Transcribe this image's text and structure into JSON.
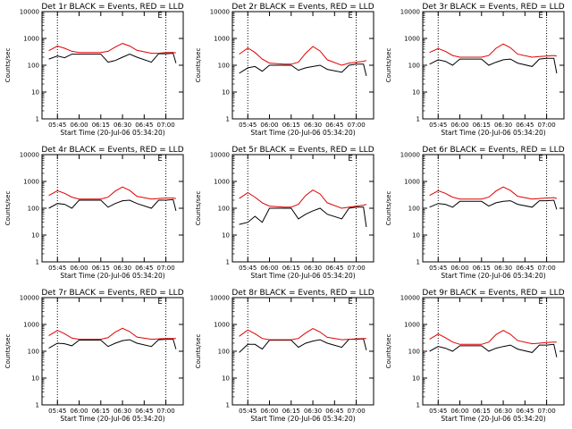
{
  "chart_data": [
    {
      "type": "line",
      "title": "Det 1r BLACK = Events, RED = LLD",
      "xlabel": "Start Time (20-Jul-06 05:34:20)",
      "ylabel": "Counts/sec",
      "marker_label": "E",
      "yscale": "log",
      "ylim": [
        1,
        10000
      ],
      "x_tick_labels": [
        "05:45",
        "06:00",
        "06:15",
        "06:30",
        "06:45",
        "07:00"
      ],
      "y_tick_labels": [
        "1",
        "10",
        "100",
        "1000",
        "10000"
      ],
      "colors": {
        "events": "#000000",
        "lld": "#e00000"
      },
      "series": [
        {
          "name": "BLACK = Events",
          "x": [
            "05:39",
            "05:45",
            "05:50",
            "05:55",
            "06:00",
            "06:10",
            "06:15",
            "06:20",
            "06:25",
            "06:30",
            "06:35",
            "06:40",
            "06:50",
            "06:55",
            "07:00",
            "07:05",
            "07:07"
          ],
          "y": [
            170,
            220,
            190,
            260,
            260,
            260,
            260,
            130,
            150,
            200,
            260,
            200,
            130,
            270,
            270,
            280,
            120
          ]
        },
        {
          "name": "RED = LLD",
          "x": [
            "05:39",
            "05:45",
            "05:50",
            "05:55",
            "06:00",
            "06:10",
            "06:15",
            "06:20",
            "06:25",
            "06:30",
            "06:35",
            "06:40",
            "06:50",
            "06:55",
            "07:00",
            "07:05",
            "07:07"
          ],
          "y": [
            350,
            520,
            430,
            330,
            300,
            300,
            300,
            330,
            480,
            650,
            520,
            360,
            280,
            280,
            300,
            300,
            290
          ]
        }
      ]
    },
    {
      "type": "line",
      "title": "Det 2r BLACK = Events, RED = LLD",
      "xlabel": "Start Time (20-Jul-06 05:34:20)",
      "ylabel": "Counts/sec",
      "marker_label": "E",
      "yscale": "log",
      "ylim": [
        1,
        10000
      ],
      "x_tick_labels": [
        "05:45",
        "06:00",
        "06:15",
        "06:30",
        "06:45",
        "07:00"
      ],
      "y_tick_labels": [
        "1",
        "10",
        "100",
        "1000",
        "10000"
      ],
      "colors": {
        "events": "#000000",
        "lld": "#e00000"
      },
      "series": [
        {
          "name": "BLACK = Events",
          "x": [
            "05:39",
            "05:45",
            "05:50",
            "05:55",
            "06:00",
            "06:10",
            "06:15",
            "06:20",
            "06:25",
            "06:30",
            "06:35",
            "06:40",
            "06:50",
            "06:55",
            "07:00",
            "07:05",
            "07:07"
          ],
          "y": [
            50,
            80,
            90,
            60,
            100,
            100,
            100,
            65,
            80,
            90,
            100,
            70,
            55,
            100,
            110,
            110,
            40
          ]
        },
        {
          "name": "RED = LLD",
          "x": [
            "05:39",
            "05:45",
            "05:50",
            "05:55",
            "06:00",
            "06:10",
            "06:15",
            "06:20",
            "06:25",
            "06:30",
            "06:35",
            "06:40",
            "06:50",
            "06:55",
            "07:00",
            "07:05",
            "07:07"
          ],
          "y": [
            260,
            440,
            300,
            170,
            120,
            110,
            110,
            130,
            280,
            500,
            340,
            160,
            100,
            120,
            130,
            140,
            150
          ]
        }
      ]
    },
    {
      "type": "line",
      "title": "Det 3r BLACK = Events, RED = LLD",
      "xlabel": "Start Time (20-Jul-06 05:34:20)",
      "ylabel": "Counts/sec",
      "marker_label": "E",
      "yscale": "log",
      "ylim": [
        1,
        10000
      ],
      "x_tick_labels": [
        "05:45",
        "06:00",
        "06:15",
        "06:30",
        "06:45",
        "07:00"
      ],
      "y_tick_labels": [
        "1",
        "10",
        "100",
        "1000",
        "10000"
      ],
      "colors": {
        "events": "#000000",
        "lld": "#e00000"
      },
      "series": [
        {
          "name": "BLACK = Events",
          "x": [
            "05:39",
            "05:45",
            "05:50",
            "05:55",
            "06:00",
            "06:10",
            "06:15",
            "06:20",
            "06:25",
            "06:30",
            "06:35",
            "06:40",
            "06:50",
            "06:55",
            "07:00",
            "07:05",
            "07:07"
          ],
          "y": [
            110,
            160,
            140,
            100,
            170,
            170,
            170,
            100,
            130,
            160,
            170,
            120,
            90,
            170,
            180,
            180,
            50
          ]
        },
        {
          "name": "RED = LLD",
          "x": [
            "05:39",
            "05:45",
            "05:50",
            "05:55",
            "06:00",
            "06:10",
            "06:15",
            "06:20",
            "06:25",
            "06:30",
            "06:35",
            "06:40",
            "06:50",
            "06:55",
            "07:00",
            "07:05",
            "07:07"
          ],
          "y": [
            300,
            420,
            330,
            230,
            200,
            200,
            200,
            230,
            430,
            620,
            450,
            260,
            200,
            210,
            220,
            230,
            220
          ]
        }
      ]
    },
    {
      "type": "line",
      "title": "Det 4r BLACK = Events, RED = LLD",
      "xlabel": "Start Time (20-Jul-06 05:34:20)",
      "ylabel": "Counts/sec",
      "marker_label": "E",
      "yscale": "log",
      "ylim": [
        1,
        10000
      ],
      "x_tick_labels": [
        "05:45",
        "06:00",
        "06:15",
        "06:30",
        "06:45",
        "07:00"
      ],
      "y_tick_labels": [
        "1",
        "10",
        "100",
        "1000",
        "10000"
      ],
      "colors": {
        "events": "#000000",
        "lld": "#e00000"
      },
      "series": [
        {
          "name": "BLACK = Events",
          "x": [
            "05:39",
            "05:45",
            "05:50",
            "05:55",
            "06:00",
            "06:10",
            "06:15",
            "06:20",
            "06:25",
            "06:30",
            "06:35",
            "06:40",
            "06:50",
            "06:55",
            "07:00",
            "07:05",
            "07:07"
          ],
          "y": [
            100,
            150,
            140,
            100,
            200,
            200,
            200,
            110,
            150,
            190,
            200,
            150,
            100,
            200,
            200,
            210,
            80
          ]
        },
        {
          "name": "RED = LLD",
          "x": [
            "05:39",
            "05:45",
            "05:50",
            "05:55",
            "06:00",
            "06:10",
            "06:15",
            "06:20",
            "06:25",
            "06:30",
            "06:35",
            "06:40",
            "06:50",
            "06:55",
            "07:00",
            "07:05",
            "07:07"
          ],
          "y": [
            300,
            450,
            360,
            260,
            220,
            220,
            220,
            260,
            440,
            620,
            460,
            280,
            220,
            230,
            240,
            240,
            230
          ]
        }
      ]
    },
    {
      "type": "line",
      "title": "Det 5r BLACK = Events, RED = LLD",
      "xlabel": "Start Time (20-Jul-06 05:34:20)",
      "ylabel": "Counts/sec",
      "marker_label": "E",
      "yscale": "log",
      "ylim": [
        1,
        10000
      ],
      "x_tick_labels": [
        "05:45",
        "06:00",
        "06:15",
        "06:30",
        "06:45",
        "07:00"
      ],
      "y_tick_labels": [
        "1",
        "10",
        "100",
        "1000",
        "10000"
      ],
      "colors": {
        "events": "#000000",
        "lld": "#e00000"
      },
      "series": [
        {
          "name": "BLACK = Events",
          "x": [
            "05:39",
            "05:45",
            "05:50",
            "05:55",
            "06:00",
            "06:10",
            "06:15",
            "06:20",
            "06:25",
            "06:30",
            "06:35",
            "06:40",
            "06:50",
            "06:55",
            "07:00",
            "07:05",
            "07:07"
          ],
          "y": [
            25,
            30,
            50,
            30,
            100,
            100,
            100,
            40,
            60,
            80,
            100,
            60,
            40,
            100,
            110,
            110,
            20
          ]
        },
        {
          "name": "RED = LLD",
          "x": [
            "05:39",
            "05:45",
            "05:50",
            "05:55",
            "06:00",
            "06:10",
            "06:15",
            "06:20",
            "06:25",
            "06:30",
            "06:35",
            "06:40",
            "06:50",
            "06:55",
            "07:00",
            "07:05",
            "07:07"
          ],
          "y": [
            230,
            380,
            260,
            160,
            120,
            110,
            110,
            140,
            300,
            480,
            340,
            160,
            100,
            110,
            120,
            130,
            140
          ]
        }
      ]
    },
    {
      "type": "line",
      "title": "Det 6r BLACK = Events, RED = LLD",
      "xlabel": "Start Time (20-Jul-06 05:34:20)",
      "ylabel": "Counts/sec",
      "marker_label": "E",
      "yscale": "log",
      "ylim": [
        1,
        10000
      ],
      "x_tick_labels": [
        "05:45",
        "06:00",
        "06:15",
        "06:30",
        "06:45",
        "07:00"
      ],
      "y_tick_labels": [
        "1",
        "10",
        "100",
        "1000",
        "10000"
      ],
      "colors": {
        "events": "#000000",
        "lld": "#e00000"
      },
      "series": [
        {
          "name": "BLACK = Events",
          "x": [
            "05:39",
            "05:45",
            "05:50",
            "05:55",
            "06:00",
            "06:10",
            "06:15",
            "06:20",
            "06:25",
            "06:30",
            "06:35",
            "06:40",
            "06:50",
            "06:55",
            "07:00",
            "07:05",
            "07:07"
          ],
          "y": [
            110,
            150,
            140,
            110,
            180,
            180,
            180,
            120,
            160,
            180,
            190,
            140,
            110,
            190,
            190,
            200,
            90
          ]
        },
        {
          "name": "RED = LLD",
          "x": [
            "05:39",
            "05:45",
            "05:50",
            "05:55",
            "06:00",
            "06:10",
            "06:15",
            "06:20",
            "06:25",
            "06:30",
            "06:35",
            "06:40",
            "06:50",
            "06:55",
            "07:00",
            "07:05",
            "07:07"
          ],
          "y": [
            300,
            450,
            360,
            260,
            220,
            220,
            220,
            260,
            440,
            620,
            460,
            280,
            220,
            230,
            240,
            250,
            230
          ]
        }
      ]
    },
    {
      "type": "line",
      "title": "Det 7r BLACK = Events, RED = LLD",
      "xlabel": "Start Time (20-Jul-06 05:34:20)",
      "ylabel": "Counts/sec",
      "marker_label": "E",
      "yscale": "log",
      "ylim": [
        1,
        10000
      ],
      "x_tick_labels": [
        "05:45",
        "06:00",
        "06:15",
        "06:30",
        "06:45",
        "07:00"
      ],
      "y_tick_labels": [
        "1",
        "10",
        "100",
        "1000",
        "10000"
      ],
      "colors": {
        "events": "#000000",
        "lld": "#e00000"
      },
      "series": [
        {
          "name": "BLACK = Events",
          "x": [
            "05:39",
            "05:45",
            "05:50",
            "05:55",
            "06:00",
            "06:10",
            "06:15",
            "06:20",
            "06:25",
            "06:30",
            "06:35",
            "06:40",
            "06:50",
            "06:55",
            "07:00",
            "07:05",
            "07:07"
          ],
          "y": [
            130,
            200,
            190,
            160,
            260,
            260,
            260,
            150,
            200,
            250,
            270,
            200,
            150,
            270,
            280,
            280,
            120
          ]
        },
        {
          "name": "RED = LLD",
          "x": [
            "05:39",
            "05:45",
            "05:50",
            "05:55",
            "06:00",
            "06:10",
            "06:15",
            "06:20",
            "06:25",
            "06:30",
            "06:35",
            "06:40",
            "06:50",
            "06:55",
            "07:00",
            "07:05",
            "07:07"
          ],
          "y": [
            380,
            600,
            450,
            310,
            280,
            280,
            280,
            320,
            520,
            720,
            540,
            340,
            280,
            290,
            300,
            300,
            300
          ]
        }
      ]
    },
    {
      "type": "line",
      "title": "Det 8r BLACK = Events, RED = LLD",
      "xlabel": "Start Time (20-Jul-06 05:34:20)",
      "ylabel": "Counts/sec",
      "marker_label": "E",
      "yscale": "log",
      "ylim": [
        1,
        10000
      ],
      "x_tick_labels": [
        "05:45",
        "06:00",
        "06:15",
        "06:30",
        "06:45",
        "07:00"
      ],
      "y_tick_labels": [
        "1",
        "10",
        "100",
        "1000",
        "10000"
      ],
      "colors": {
        "events": "#000000",
        "lld": "#e00000"
      },
      "series": [
        {
          "name": "BLACK = Events",
          "x": [
            "05:39",
            "05:45",
            "05:50",
            "05:55",
            "06:00",
            "06:10",
            "06:15",
            "06:20",
            "06:25",
            "06:30",
            "06:35",
            "06:40",
            "06:50",
            "06:55",
            "07:00",
            "07:05",
            "07:07"
          ],
          "y": [
            90,
            180,
            180,
            120,
            260,
            260,
            260,
            140,
            200,
            240,
            270,
            200,
            140,
            280,
            280,
            290,
            110
          ]
        },
        {
          "name": "RED = LLD",
          "x": [
            "05:39",
            "05:45",
            "05:50",
            "05:55",
            "06:00",
            "06:10",
            "06:15",
            "06:20",
            "06:25",
            "06:30",
            "06:35",
            "06:40",
            "06:50",
            "06:55",
            "07:00",
            "07:05",
            "07:07"
          ],
          "y": [
            360,
            620,
            450,
            300,
            270,
            270,
            270,
            300,
            480,
            700,
            520,
            330,
            270,
            280,
            290,
            300,
            300
          ]
        }
      ]
    },
    {
      "type": "line",
      "title": "Det 9r BLACK = Events, RED = LLD",
      "xlabel": "Start Time (20-Jul-06 05:34:20)",
      "ylabel": "Counts/sec",
      "marker_label": "E",
      "yscale": "log",
      "ylim": [
        1,
        10000
      ],
      "x_tick_labels": [
        "05:45",
        "06:00",
        "06:15",
        "06:30",
        "06:45",
        "07:00"
      ],
      "y_tick_labels": [
        "1",
        "10",
        "100",
        "1000",
        "10000"
      ],
      "colors": {
        "events": "#000000",
        "lld": "#e00000"
      },
      "series": [
        {
          "name": "BLACK = Events",
          "x": [
            "05:39",
            "05:45",
            "05:50",
            "05:55",
            "06:00",
            "06:10",
            "06:15",
            "06:20",
            "06:25",
            "06:30",
            "06:35",
            "06:40",
            "06:50",
            "06:55",
            "07:00",
            "07:05",
            "07:07"
          ],
          "y": [
            100,
            150,
            130,
            100,
            160,
            160,
            160,
            100,
            130,
            150,
            170,
            120,
            90,
            170,
            170,
            180,
            60
          ]
        },
        {
          "name": "RED = LLD",
          "x": [
            "05:39",
            "05:45",
            "05:50",
            "05:55",
            "06:00",
            "06:10",
            "06:15",
            "06:20",
            "06:25",
            "06:30",
            "06:35",
            "06:40",
            "06:50",
            "06:55",
            "07:00",
            "07:05",
            "07:07"
          ],
          "y": [
            280,
            440,
            320,
            220,
            180,
            180,
            180,
            220,
            420,
            600,
            430,
            250,
            190,
            200,
            210,
            220,
            220
          ]
        }
      ]
    }
  ]
}
